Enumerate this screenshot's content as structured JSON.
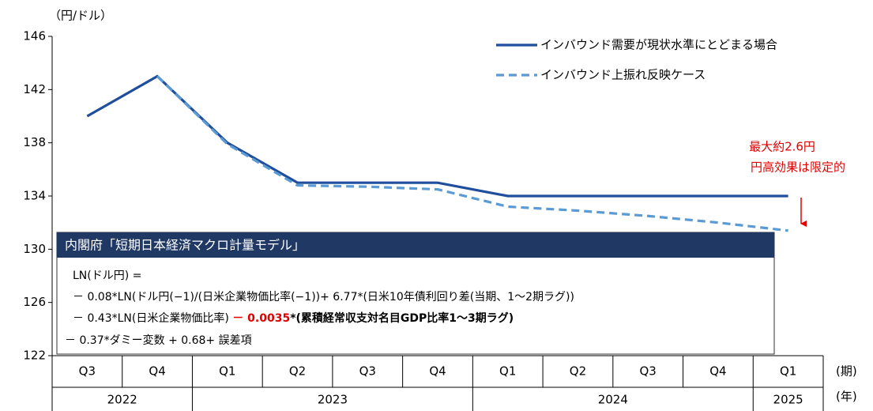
{
  "chart_data": {
    "type": "line",
    "unit_label": "（円/ドル）",
    "categories": [
      "Q3",
      "Q4",
      "Q1",
      "Q2",
      "Q3",
      "Q4",
      "Q1",
      "Q2",
      "Q3",
      "Q4",
      "Q1"
    ],
    "years": [
      {
        "label": "2022",
        "span": 2
      },
      {
        "label": "2023",
        "span": 4
      },
      {
        "label": "2024",
        "span": 4
      },
      {
        "label": "2025",
        "span": 1
      }
    ],
    "x_label_period": "(期)",
    "x_label_year": "(年)",
    "ylim": [
      122,
      146
    ],
    "yticks": [
      122,
      126,
      130,
      134,
      138,
      142,
      146
    ],
    "series": [
      {
        "name": "インバウンド需要が現状水準にとどまる場合",
        "color": "#1f4e9c",
        "style": "solid",
        "values": [
          140,
          143,
          138,
          135,
          135,
          135,
          134,
          134,
          134,
          134,
          134
        ]
      },
      {
        "name": "インバウンド上振れ反映ケース",
        "color": "#5b9bd5",
        "style": "dashed",
        "values": [
          null,
          143,
          137.9,
          134.8,
          134.7,
          134.5,
          133.2,
          132.9,
          132.5,
          132.0,
          131.4
        ]
      }
    ],
    "annotation": [
      "最大約2.6円",
      "円高効果は限定的"
    ],
    "box": {
      "title": "内閣府「短期日本経済マクロ計量モデル」",
      "lines": [
        "LN(ドル円) =",
        "－ 0.08*LN(ドル円(−1)/(日米企業物価比率(−1))+ 6.77*(日米10年債利回り差(当期、1～2期ラグ))",
        "－ 0.43*LN(日米企業物価比率)",
        "－ 0.0035",
        "*(累積経常収支対名目GDP比率1～3期ラグ)",
        "－ 0.37*ダミー変数 + 0.68+ 誤差項"
      ]
    }
  }
}
